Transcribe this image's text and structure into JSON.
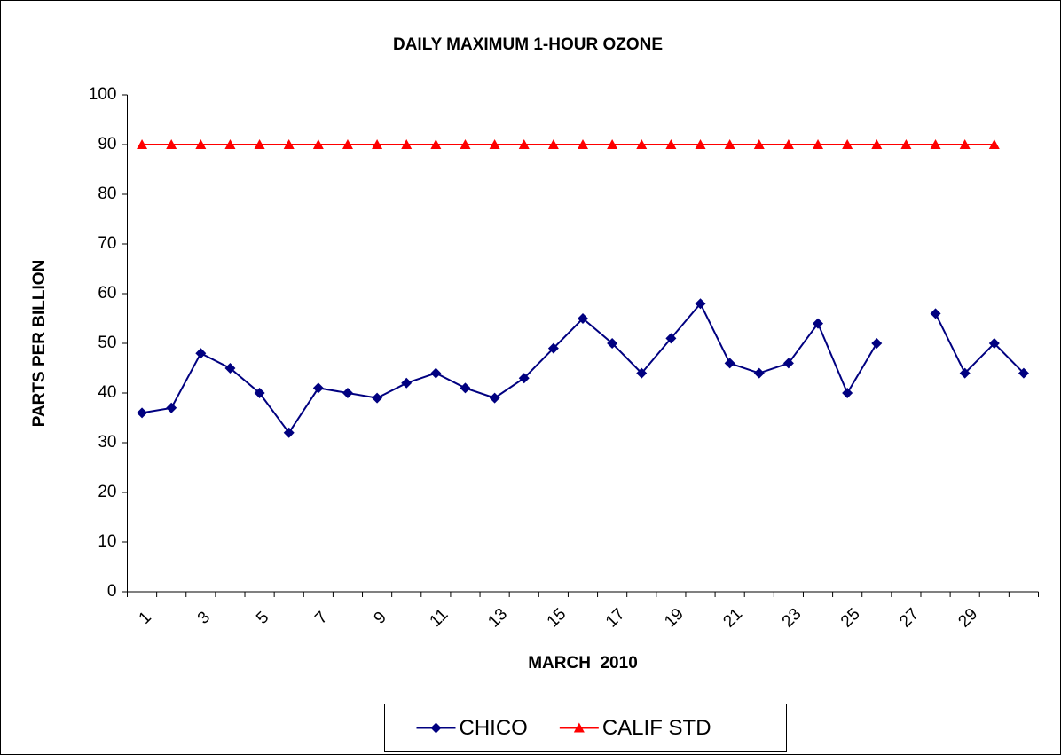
{
  "chart_data": {
    "type": "line",
    "title": "DAILY MAXIMUM 1-HOUR OZONE",
    "x_label": "MARCH  2010",
    "y_label": "PARTS PER BILLION",
    "categories": [
      "1",
      null,
      "3",
      null,
      "5",
      null,
      "7",
      null,
      "9",
      null,
      "11",
      null,
      "13",
      null,
      "15",
      null,
      "17",
      null,
      "19",
      null,
      "21",
      null,
      "23",
      null,
      "25",
      null,
      "27",
      null,
      "29",
      null,
      null
    ],
    "series": [
      {
        "name": "CHICO",
        "color": "#000080",
        "marker": "diamond",
        "values": [
          36,
          37,
          48,
          45,
          40,
          32,
          41,
          40,
          39,
          42,
          44,
          41,
          39,
          43,
          49,
          55,
          50,
          44,
          51,
          58,
          46,
          44,
          46,
          54,
          40,
          50,
          null,
          56,
          44,
          50,
          44
        ]
      },
      {
        "name": "CALIF STD",
        "color": "#ff0000",
        "marker": "triangle",
        "values": [
          90,
          90,
          90,
          90,
          90,
          90,
          90,
          90,
          90,
          90,
          90,
          90,
          90,
          90,
          90,
          90,
          90,
          90,
          90,
          90,
          90,
          90,
          90,
          90,
          90,
          90,
          90,
          90,
          90,
          90,
          null
        ]
      }
    ],
    "ylim": [
      0,
      100
    ],
    "yticks": [
      0,
      10,
      20,
      30,
      40,
      50,
      60,
      70,
      80,
      90,
      100
    ],
    "grid": false,
    "legend": "bottom"
  }
}
